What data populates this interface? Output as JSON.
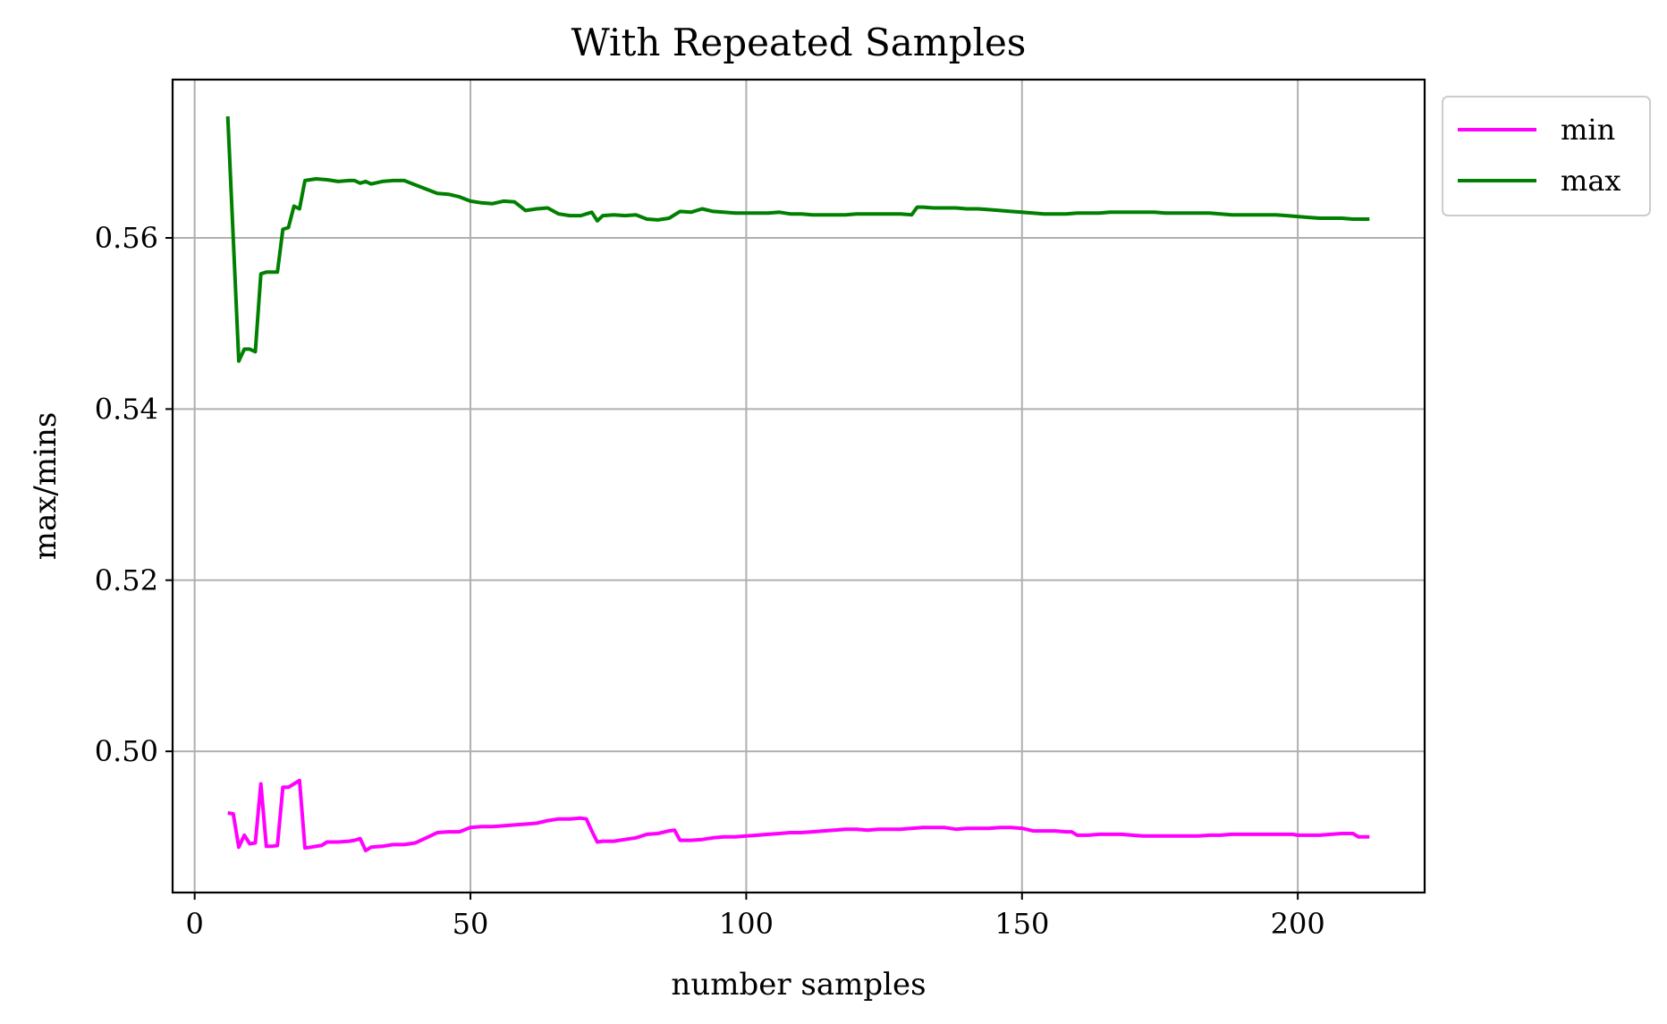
{
  "chart_data": {
    "type": "line",
    "title": "With Repeated Samples",
    "xlabel": "number samples",
    "ylabel": "max/mins",
    "xlim": [
      -4,
      223
    ],
    "ylim": [
      0.4835,
      0.5785
    ],
    "xticks": [
      0,
      50,
      100,
      150,
      200
    ],
    "xtick_labels": [
      "0",
      "50",
      "100",
      "150",
      "200"
    ],
    "yticks": [
      0.5,
      0.52,
      0.54,
      0.56
    ],
    "ytick_labels": [
      "0.50",
      "0.52",
      "0.54",
      "0.56"
    ],
    "grid": true,
    "legend_position": "outside-top-right",
    "series": [
      {
        "name": "min",
        "color": "#ff00ff",
        "x": [
          6,
          7,
          8,
          9,
          10,
          11,
          12,
          13,
          14,
          15,
          16,
          17,
          18,
          19,
          20,
          21,
          22,
          23,
          24,
          26,
          28,
          29,
          30,
          31,
          32,
          34,
          36,
          38,
          40,
          42,
          44,
          46,
          48,
          50,
          52,
          54,
          56,
          58,
          60,
          62,
          64,
          66,
          68,
          70,
          71,
          72,
          73,
          74,
          76,
          78,
          80,
          82,
          84,
          86,
          87,
          88,
          90,
          92,
          94,
          96,
          98,
          100,
          102,
          104,
          106,
          108,
          110,
          112,
          114,
          116,
          118,
          120,
          122,
          124,
          126,
          128,
          130,
          132,
          134,
          136,
          138,
          140,
          142,
          144,
          146,
          148,
          150,
          152,
          154,
          156,
          158,
          159,
          160,
          162,
          164,
          166,
          168,
          170,
          172,
          174,
          176,
          178,
          180,
          182,
          184,
          186,
          188,
          190,
          192,
          194,
          196,
          198,
          199,
          200,
          202,
          204,
          206,
          208,
          210,
          211,
          212,
          213
        ],
        "values": [
          0.4928,
          0.4927,
          0.4888,
          0.4902,
          0.4892,
          0.4893,
          0.4962,
          0.4889,
          0.4889,
          0.489,
          0.4958,
          0.4958,
          0.4962,
          0.4966,
          0.4887,
          0.4888,
          0.4889,
          0.489,
          0.4894,
          0.4894,
          0.4895,
          0.4896,
          0.4898,
          0.4884,
          0.4888,
          0.4889,
          0.4891,
          0.4891,
          0.4893,
          0.4899,
          0.4905,
          0.4906,
          0.4906,
          0.4911,
          0.4912,
          0.4912,
          0.4913,
          0.4914,
          0.4915,
          0.4916,
          0.4919,
          0.4921,
          0.4921,
          0.4922,
          0.4921,
          0.4907,
          0.4894,
          0.4895,
          0.4895,
          0.4897,
          0.4899,
          0.4903,
          0.4904,
          0.4907,
          0.4908,
          0.4896,
          0.4896,
          0.4897,
          0.4899,
          0.49,
          0.49,
          0.4901,
          0.4902,
          0.4903,
          0.4904,
          0.4905,
          0.4905,
          0.4906,
          0.4907,
          0.4908,
          0.4909,
          0.4909,
          0.4908,
          0.4909,
          0.4909,
          0.4909,
          0.491,
          0.4911,
          0.4911,
          0.4911,
          0.4909,
          0.491,
          0.491,
          0.491,
          0.4911,
          0.4911,
          0.491,
          0.4907,
          0.4907,
          0.4907,
          0.4906,
          0.4906,
          0.4902,
          0.4902,
          0.4903,
          0.4903,
          0.4903,
          0.4902,
          0.4901,
          0.4901,
          0.4901,
          0.4901,
          0.4901,
          0.4901,
          0.4902,
          0.4902,
          0.4903,
          0.4903,
          0.4903,
          0.4903,
          0.4903,
          0.4903,
          0.4903,
          0.4902,
          0.4902,
          0.4902,
          0.4903,
          0.4904,
          0.4904,
          0.49,
          0.49,
          0.49
        ]
      },
      {
        "name": "max",
        "color": "#008000",
        "x": [
          6,
          7,
          8,
          9,
          10,
          11,
          12,
          13,
          14,
          15,
          16,
          17,
          18,
          19,
          20,
          22,
          24,
          26,
          28,
          29,
          30,
          31,
          32,
          34,
          36,
          38,
          40,
          42,
          44,
          46,
          48,
          50,
          52,
          54,
          56,
          58,
          60,
          62,
          64,
          66,
          68,
          70,
          72,
          73,
          74,
          76,
          78,
          80,
          82,
          84,
          86,
          88,
          90,
          92,
          94,
          96,
          98,
          100,
          102,
          104,
          106,
          108,
          110,
          112,
          114,
          116,
          118,
          120,
          122,
          124,
          126,
          128,
          130,
          131,
          132,
          134,
          136,
          138,
          140,
          142,
          144,
          146,
          148,
          150,
          152,
          154,
          156,
          158,
          160,
          162,
          164,
          166,
          168,
          170,
          172,
          174,
          176,
          178,
          180,
          182,
          184,
          186,
          188,
          190,
          192,
          194,
          196,
          198,
          200,
          202,
          204,
          206,
          208,
          210,
          212,
          213
        ],
        "values": [
          0.5742,
          0.56,
          0.5456,
          0.547,
          0.547,
          0.5467,
          0.5558,
          0.556,
          0.556,
          0.556,
          0.561,
          0.5612,
          0.5637,
          0.5634,
          0.5667,
          0.5669,
          0.5668,
          0.5666,
          0.5667,
          0.5667,
          0.5664,
          0.5666,
          0.5663,
          0.5666,
          0.5667,
          0.5667,
          0.5662,
          0.5657,
          0.5652,
          0.5651,
          0.5648,
          0.5643,
          0.5641,
          0.564,
          0.5643,
          0.5642,
          0.5632,
          0.5634,
          0.5635,
          0.5628,
          0.5626,
          0.5626,
          0.563,
          0.562,
          0.5626,
          0.5627,
          0.5626,
          0.5627,
          0.5622,
          0.5621,
          0.5623,
          0.5631,
          0.563,
          0.5634,
          0.5631,
          0.563,
          0.5629,
          0.5629,
          0.5629,
          0.5629,
          0.563,
          0.5628,
          0.5628,
          0.5627,
          0.5627,
          0.5627,
          0.5627,
          0.5628,
          0.5628,
          0.5628,
          0.5628,
          0.5628,
          0.5627,
          0.5636,
          0.5636,
          0.5635,
          0.5635,
          0.5635,
          0.5634,
          0.5634,
          0.5633,
          0.5632,
          0.5631,
          0.563,
          0.5629,
          0.5628,
          0.5628,
          0.5628,
          0.5629,
          0.5629,
          0.5629,
          0.563,
          0.563,
          0.563,
          0.563,
          0.563,
          0.5629,
          0.5629,
          0.5629,
          0.5629,
          0.5629,
          0.5628,
          0.5627,
          0.5627,
          0.5627,
          0.5627,
          0.5627,
          0.5626,
          0.5625,
          0.5624,
          0.5623,
          0.5623,
          0.5623,
          0.5622,
          0.5622,
          0.5622
        ]
      }
    ]
  }
}
